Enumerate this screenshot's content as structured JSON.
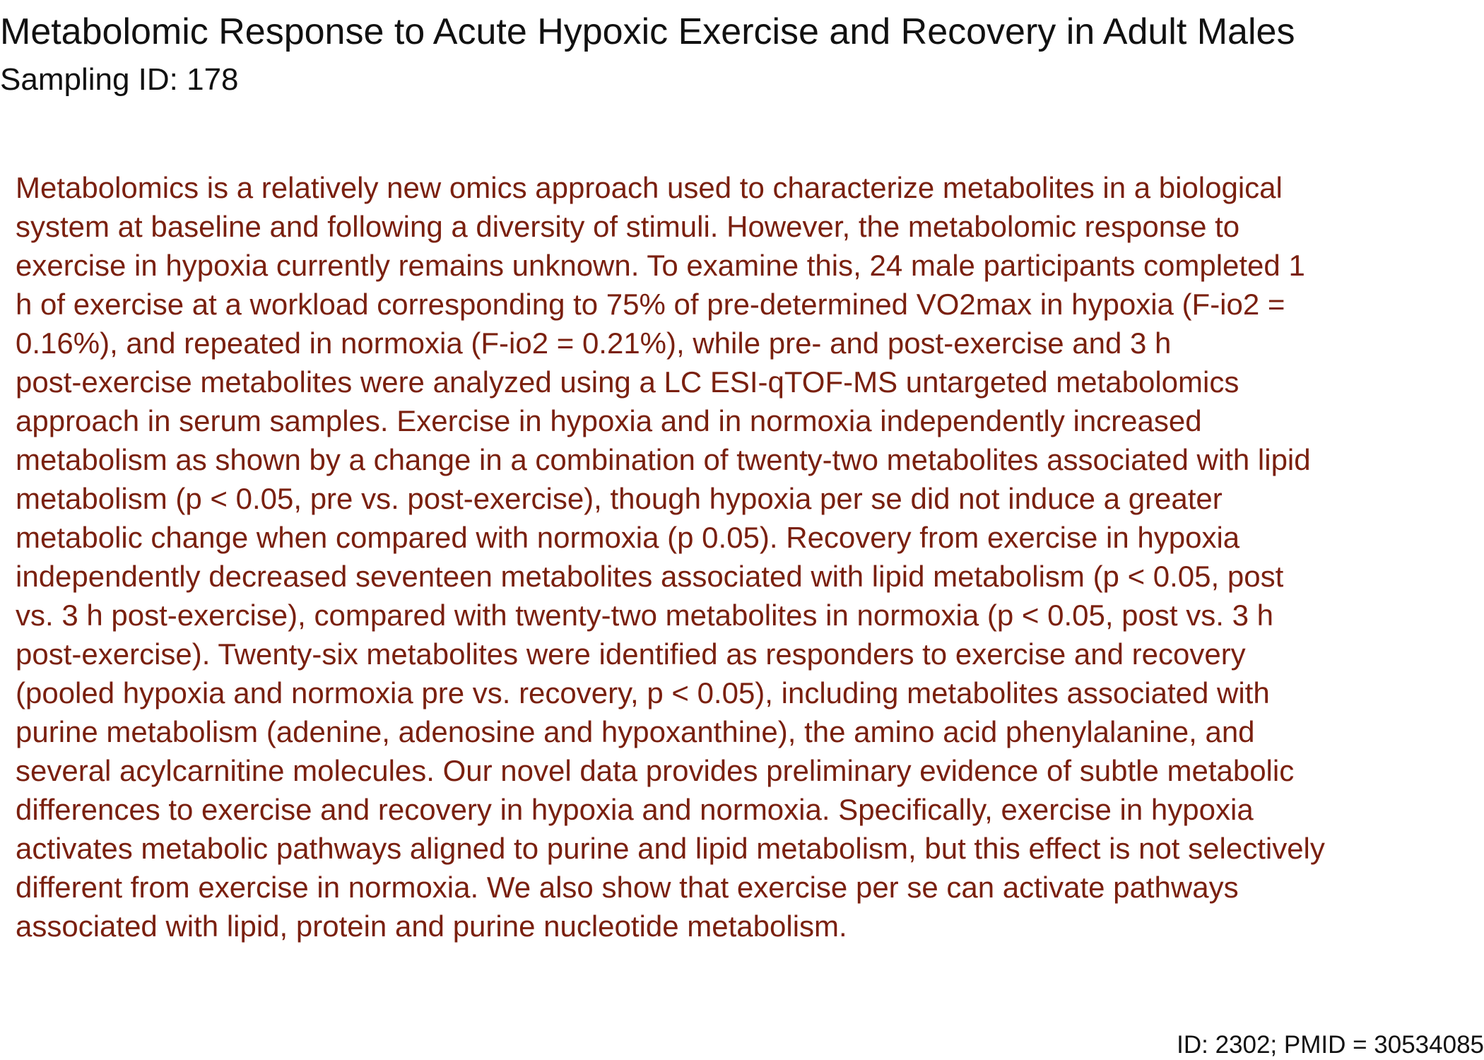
{
  "document": {
    "title": "Metabolomic Response to Acute Hypoxic Exercise and Recovery in Adult Males",
    "subtitle": "Sampling ID: 178",
    "abstract_lines": [
      "Metabolomics is a relatively new omics approach used to characterize metabolites in a biological",
      "system at baseline and following a diversity of stimuli. However, the metabolomic response to",
      "exercise in hypoxia currently remains unknown. To examine this, 24 male participants completed 1",
      "h of exercise at a workload corresponding to 75% of pre-determined VO2max in hypoxia (F-io2 =",
      "0.16%), and repeated in normoxia (F-io2 = 0.21%), while pre- and post-exercise and 3 h",
      "post-exercise metabolites were analyzed using a LC ESI-qTOF-MS untargeted metabolomics",
      "approach in serum samples. Exercise in hypoxia and in normoxia independently increased",
      "metabolism as shown by a change in a combination of twenty-two metabolites associated with lipid",
      "metabolism (p < 0.05, pre vs. post-exercise), though hypoxia per se did not induce a greater",
      "metabolic change when compared with normoxia (p 0.05). Recovery from exercise in hypoxia",
      "independently decreased seventeen metabolites associated with lipid metabolism (p < 0.05, post",
      "vs. 3 h post-exercise), compared with twenty-two metabolites in normoxia (p < 0.05, post vs. 3 h",
      "post-exercise). Twenty-six metabolites were identified as responders to exercise and recovery",
      "(pooled hypoxia and normoxia pre vs. recovery, p < 0.05), including metabolites associated with",
      "purine metabolism (adenine, adenosine and hypoxanthine), the amino acid phenylalanine, and",
      "several acylcarnitine molecules. Our novel data provides preliminary evidence of subtle metabolic",
      "differences to exercise and recovery in hypoxia and normoxia. Specifically, exercise in hypoxia",
      "activates metabolic pathways aligned to purine and lipid metabolism, but this effect is not selectively",
      "different from exercise in normoxia. We also show that exercise per se can activate pathways",
      "associated with lipid, protein and purine nucleotide metabolism."
    ],
    "footer": "ID: 2302; PMID = 30534085"
  },
  "colors": {
    "title_text": "#111111",
    "abstract_text": "#7a200f",
    "background": "#ffffff"
  }
}
